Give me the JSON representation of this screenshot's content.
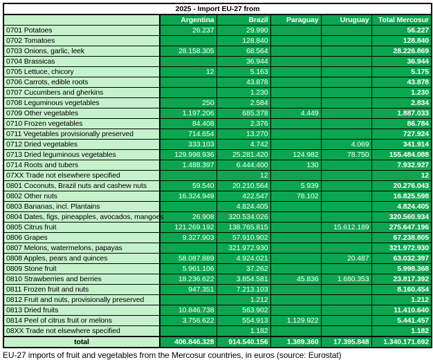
{
  "colors": {
    "cell_green": "#0da650",
    "pale_green": "#c6f2cb",
    "border": "#000000",
    "value_text": "#ffffff",
    "label_text": "#000000"
  },
  "chart_data": {
    "type": "table",
    "title": "2025  -  Import EU-27 from",
    "caption": "EU-27 imports of fruit and vegetables from the Mercosur countries, in euros (source: Eurostat)",
    "columns": [
      "",
      "Argentina",
      "Brazil",
      "Paraguay",
      "Uruguay",
      "Total Mercosur"
    ],
    "rows": [
      {
        "label": "0701 Potatoes",
        "values": [
          "26.237",
          "29.990",
          "",
          "",
          "56.227"
        ]
      },
      {
        "label": "0702 Tomatoes",
        "values": [
          "",
          "128.840",
          "",
          "",
          "128.840"
        ]
      },
      {
        "label": "0703 Onions, garlic, leek",
        "values": [
          "28.158.305",
          "68.564",
          "",
          "",
          "28.226.869"
        ]
      },
      {
        "label": "0704 Brassicas",
        "values": [
          "",
          "36.944",
          "",
          "",
          "36.944"
        ]
      },
      {
        "label": "0705 Lettuce, chicory",
        "values": [
          "12",
          "5.163",
          "",
          "",
          "5.175"
        ]
      },
      {
        "label": "0706 Carrots, edible roots",
        "values": [
          "",
          "43.878",
          "",
          "",
          "43.878"
        ]
      },
      {
        "label": "0707 Cucumbers and gherkins",
        "values": [
          "",
          "1.230",
          "",
          "",
          "1.230"
        ]
      },
      {
        "label": "0708 Leguminous vegetables",
        "values": [
          "250",
          "2.584",
          "",
          "",
          "2.834"
        ]
      },
      {
        "label": "0709 Other vegetables",
        "values": [
          "1.197.206",
          "685.378",
          "4.449",
          "",
          "1.887.033"
        ]
      },
      {
        "label": "0710 Frozen vegetables",
        "values": [
          "84.408",
          "2.376",
          "",
          "",
          "86.784"
        ]
      },
      {
        "label": "0711 Vegetables provisionally preserved",
        "values": [
          "714.654",
          "13.270",
          "",
          "",
          "727.924"
        ]
      },
      {
        "label": "0712 Dried vegetables",
        "values": [
          "333.103",
          "4.742",
          "",
          "4.069",
          "341.914"
        ]
      },
      {
        "label": "0713 Dried leguminous vegetables",
        "values": [
          "129.998.936",
          "25.281.420",
          "124.982",
          "78.750",
          "155.484.088"
        ]
      },
      {
        "label": "0714 Roots and tubers",
        "values": [
          "1.488.397",
          "6.444.400",
          "130",
          "",
          "7.932.927"
        ]
      },
      {
        "label": "07XX Trade not elsewhere specified",
        "values": [
          "",
          "12",
          "",
          "",
          "12"
        ]
      },
      {
        "label": "0801 Coconuts, Brazil nuts and cashew nuts",
        "values": [
          "59.540",
          "20.210.564",
          "5.939",
          "",
          "20.276.043"
        ]
      },
      {
        "label": "0802 Other nuts",
        "values": [
          "16.324.949",
          "422.547",
          "78.102",
          "",
          "16.825.598"
        ]
      },
      {
        "label": "0803 Bananas, incl. Plantains",
        "values": [
          "",
          "4.824.405",
          "",
          "",
          "4.824.405"
        ]
      },
      {
        "label": "0804 Dates, figs, pineapples, avocados, mangoes",
        "values": [
          "26.908",
          "320.534.026",
          "",
          "",
          "320.560.934"
        ]
      },
      {
        "label": "0805 Citrus fruit",
        "values": [
          "121.269.192",
          "138.765.815",
          "",
          "15.612.189",
          "275.647.196"
        ]
      },
      {
        "label": "0806 Grapes",
        "values": [
          "9.327.903",
          "57.910.902",
          "",
          "",
          "67.238.805"
        ]
      },
      {
        "label": "0807 Melons, watermelons, papayas",
        "values": [
          "",
          "321.972.930",
          "",
          "",
          "321.972.930"
        ]
      },
      {
        "label": "0808 Apples, pears and quinces",
        "values": [
          "58.087.889",
          "4.924.021",
          "",
          "20.487",
          "63.032.397"
        ]
      },
      {
        "label": "0809 Stone fruit",
        "values": [
          "5.961.106",
          "37.262",
          "",
          "",
          "5.998.368"
        ]
      },
      {
        "label": "0810 Strawberries and berries",
        "values": [
          "18.236.622",
          "3.854.581",
          "45.836",
          "1.680.353",
          "23.817.392"
        ]
      },
      {
        "label": "0811 Frozen fruit and nuts",
        "values": [
          "947.351",
          "7.213.103",
          "",
          "",
          "8.160.454"
        ]
      },
      {
        "label": "0812 Fruit and nuts, provisionally preserved",
        "values": [
          "",
          "1.212",
          "",
          "",
          "1.212"
        ]
      },
      {
        "label": "0813 Dried fruits",
        "values": [
          "10.846.738",
          "563.902",
          "",
          "",
          "11.410.640"
        ]
      },
      {
        "label": "0814 Peel of citrus fruit or melons",
        "values": [
          "3.756.622",
          "554.913",
          "1.129.922",
          "",
          "5.441.457"
        ]
      },
      {
        "label": "08XX Trade not elsewhere specified",
        "values": [
          "",
          "1.182",
          "",
          "",
          "1.182"
        ]
      }
    ],
    "total_row": {
      "label": "total",
      "values": [
        "406.846.328",
        "914.540.156",
        "1.389.360",
        "17.395.848",
        "1.340.171.692"
      ]
    }
  }
}
